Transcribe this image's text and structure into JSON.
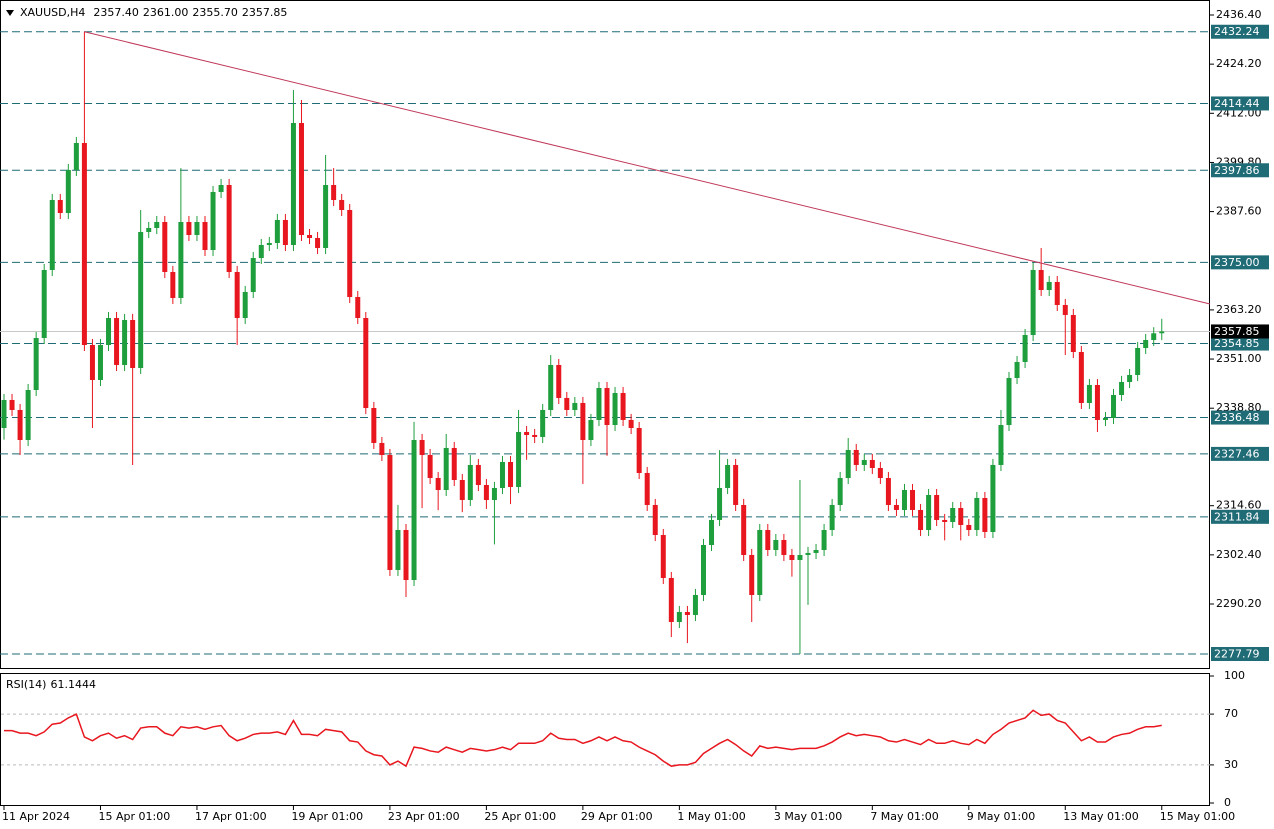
{
  "chart_data": [
    {
      "type": "candlestick",
      "title": "XAUUSD,H4",
      "header": [
        {
          "value": 2357.4,
          "label": "2357.40"
        },
        {
          "value": 2361.0,
          "label": "2361.00"
        },
        {
          "value": 2355.7,
          "label": "2355.70"
        },
        {
          "value": 2357.85,
          "label": "2357.85"
        }
      ],
      "x_labels": [
        "11 Apr 2024",
        "15 Apr 01:00",
        "17 Apr 01:00",
        "19 Apr 01:00",
        "23 Apr 01:00",
        "25 Apr 01:00",
        "29 Apr 01:00",
        "1 May 01:00",
        "3 May 01:00",
        "7 May 01:00",
        "9 May 01:00",
        "13 May 01:00",
        "15 May 01:00"
      ],
      "open": [
        2333.89,
        2340.84,
        2338.36,
        2330.91,
        2343.32,
        2356.23,
        2373.11,
        2390.48,
        2387.25,
        2397.93,
        2404.63,
        2354.49,
        2345.8,
        2354.49,
        2361.19,
        2349.53,
        2360.7,
        2348.78,
        2382.54,
        2383.53,
        2385.02,
        2372.61,
        2366.16,
        2385.02,
        2381.79,
        2385.02,
        2378.07,
        2392.47,
        2394.2,
        2372.61,
        2361.19,
        2367.65,
        2376.08,
        2379.31,
        2379.81,
        2385.52,
        2379.31,
        2409.59,
        2381.79,
        2381.05,
        2378.57,
        2394.2,
        2390.48,
        2388.0,
        2366.4,
        2361.19,
        2338.85,
        2330.17,
        2327.19,
        2298.65,
        2308.57,
        2296.16,
        2330.91,
        2327.19,
        2321.48,
        2318.5,
        2328.93,
        2320.98,
        2316.02,
        2324.71,
        2319.74,
        2316.02,
        2319.0,
        2325.45,
        2319.25,
        2332.9,
        2332.15,
        2331.66,
        2338.36,
        2349.53,
        2341.34,
        2338.36,
        2340.1,
        2330.91,
        2335.88,
        2343.82,
        2334.63,
        2342.58,
        2335.88,
        2333.89,
        2322.72,
        2314.78,
        2307.33,
        2296.66,
        2285.74,
        2288.22,
        2287.48,
        2292.44,
        2304.85,
        2311.06,
        2319.0,
        2324.71,
        2314.78,
        2302.37,
        2292.44,
        2308.57,
        2303.61,
        2306.09,
        2302.37,
        2301.13,
        2302.37,
        2302.87,
        2303.61,
        2308.57,
        2314.78,
        2321.48,
        2328.43,
        2324.71,
        2325.95,
        2323.96,
        2321.48,
        2314.78,
        2313.54,
        2318.5,
        2313.54,
        2308.57,
        2317.26,
        2311.06,
        2310.56,
        2314.03,
        2309.81,
        2308.57,
        2316.52,
        2308.08,
        2324.71,
        2334.63,
        2346.3,
        2350.27,
        2356.97,
        2373.11,
        2368.14,
        2370.13,
        2364.42,
        2361.94,
        2352.75,
        2340.1,
        2344.56,
        2335.88,
        2336.37,
        2342.08,
        2345.31,
        2347.04,
        2353.75,
        2355.73,
        2357.4
      ],
      "high": [
        2342.34,
        2342.34,
        2339.86,
        2344.82,
        2357.73,
        2374.61,
        2391.98,
        2391.98,
        2399.43,
        2406.13,
        2432.24,
        2355.99,
        2355.99,
        2362.69,
        2362.69,
        2362.2,
        2362.2,
        2388.0,
        2385.03,
        2386.52,
        2386.52,
        2374.11,
        2398.4,
        2386.52,
        2386.52,
        2386.52,
        2393.97,
        2395.7,
        2395.7,
        2374.11,
        2369.15,
        2377.58,
        2380.81,
        2381.31,
        2387.02,
        2387.02,
        2417.78,
        2415.3,
        2383.29,
        2382.55,
        2401.65,
        2398.4,
        2391.98,
        2389.5,
        2367.9,
        2362.69,
        2340.35,
        2331.67,
        2328.69,
        2314.78,
        2310.07,
        2335.4,
        2332.41,
        2328.69,
        2322.98,
        2332.4,
        2330.43,
        2322.48,
        2327.2,
        2326.21,
        2321.24,
        2320.5,
        2326.95,
        2326.95,
        2338.36,
        2334.4,
        2333.65,
        2339.86,
        2352.0,
        2351.03,
        2342.84,
        2341.6,
        2341.6,
        2337.38,
        2345.32,
        2345.32,
        2344.08,
        2344.08,
        2337.38,
        2335.39,
        2324.22,
        2316.28,
        2308.83,
        2298.16,
        2289.72,
        2289.72,
        2293.94,
        2306.35,
        2312.56,
        2328.4,
        2326.21,
        2326.21,
        2316.28,
        2303.87,
        2310.07,
        2310.07,
        2307.59,
        2307.59,
        2303.87,
        2320.98,
        2304.37,
        2305.11,
        2310.07,
        2316.28,
        2322.98,
        2331.4,
        2329.93,
        2327.45,
        2327.45,
        2325.46,
        2322.98,
        2316.28,
        2320.0,
        2320.0,
        2315.04,
        2318.76,
        2318.76,
        2312.56,
        2315.53,
        2315.53,
        2311.31,
        2318.02,
        2318.02,
        2326.21,
        2338.36,
        2347.8,
        2351.77,
        2358.47,
        2375.0,
        2378.57,
        2371.63,
        2371.63,
        2365.92,
        2363.44,
        2354.25,
        2346.06,
        2346.06,
        2337.87,
        2343.58,
        2346.81,
        2348.54,
        2355.25,
        2357.23,
        2358.9,
        2361.0
      ],
      "low": [
        2331.0,
        2336.86,
        2327.19,
        2329.41,
        2341.82,
        2354.73,
        2371.61,
        2385.75,
        2385.75,
        2396.43,
        2352.99,
        2333.89,
        2344.3,
        2352.99,
        2348.03,
        2348.03,
        2324.71,
        2347.28,
        2381.04,
        2382.03,
        2371.11,
        2364.66,
        2364.66,
        2380.29,
        2380.29,
        2376.57,
        2376.57,
        2390.97,
        2371.11,
        2354.49,
        2359.69,
        2366.15,
        2374.58,
        2377.81,
        2378.31,
        2377.81,
        2377.81,
        2380.29,
        2379.55,
        2377.07,
        2377.07,
        2388.98,
        2386.5,
        2364.9,
        2359.69,
        2337.35,
        2328.67,
        2325.69,
        2297.15,
        2297.15,
        2291.94,
        2294.66,
        2314.0,
        2319.98,
        2313.5,
        2317.0,
        2319.48,
        2313.0,
        2314.52,
        2318.24,
        2313.8,
        2305.0,
        2317.5,
        2315.0,
        2317.75,
        2326.0,
        2330.16,
        2330.16,
        2336.86,
        2339.84,
        2336.86,
        2336.86,
        2320.0,
        2329.41,
        2334.38,
        2327.0,
        2333.13,
        2334.38,
        2332.39,
        2321.22,
        2313.28,
        2305.83,
        2295.16,
        2282.0,
        2284.24,
        2280.5,
        2285.98,
        2290.94,
        2303.35,
        2309.56,
        2317.5,
        2313.28,
        2300.87,
        2285.74,
        2290.94,
        2302.11,
        2302.11,
        2300.87,
        2297.0,
        2277.79,
        2290.0,
        2301.37,
        2302.11,
        2307.07,
        2313.28,
        2319.98,
        2323.21,
        2323.21,
        2322.46,
        2319.98,
        2313.28,
        2312.04,
        2312.04,
        2312.04,
        2307.07,
        2307.07,
        2309.56,
        2306.0,
        2309.06,
        2306.0,
        2307.07,
        2307.07,
        2306.58,
        2306.58,
        2323.21,
        2333.13,
        2344.8,
        2348.77,
        2355.47,
        2366.64,
        2366.64,
        2362.92,
        2352.0,
        2351.25,
        2338.6,
        2338.6,
        2332.9,
        2334.38,
        2334.87,
        2340.58,
        2343.81,
        2345.54,
        2352.25,
        2354.23,
        2355.7
      ],
      "close": [
        2340.84,
        2338.36,
        2330.91,
        2343.32,
        2356.23,
        2373.11,
        2390.48,
        2387.25,
        2397.93,
        2404.63,
        2354.49,
        2345.8,
        2354.49,
        2361.19,
        2349.53,
        2360.7,
        2348.78,
        2382.54,
        2383.53,
        2385.02,
        2372.61,
        2366.16,
        2385.02,
        2381.79,
        2385.02,
        2378.07,
        2392.47,
        2394.2,
        2372.61,
        2361.19,
        2367.65,
        2376.08,
        2379.31,
        2379.81,
        2385.52,
        2379.31,
        2409.59,
        2381.79,
        2381.05,
        2378.57,
        2394.2,
        2390.48,
        2388.0,
        2366.4,
        2361.19,
        2338.85,
        2330.17,
        2327.19,
        2298.65,
        2308.57,
        2296.16,
        2330.91,
        2327.19,
        2321.48,
        2318.5,
        2328.93,
        2320.98,
        2316.02,
        2324.71,
        2319.74,
        2316.02,
        2319.0,
        2325.45,
        2319.25,
        2332.9,
        2332.15,
        2331.66,
        2338.36,
        2349.53,
        2341.34,
        2338.36,
        2340.1,
        2330.91,
        2335.88,
        2343.82,
        2334.63,
        2342.58,
        2335.88,
        2333.89,
        2322.72,
        2314.78,
        2307.33,
        2296.66,
        2285.74,
        2288.22,
        2287.48,
        2292.44,
        2304.85,
        2311.06,
        2319.0,
        2324.71,
        2314.78,
        2302.37,
        2292.44,
        2308.57,
        2303.61,
        2306.09,
        2302.37,
        2301.13,
        2302.37,
        2302.87,
        2303.61,
        2308.57,
        2314.78,
        2321.48,
        2328.43,
        2324.71,
        2325.95,
        2323.96,
        2321.48,
        2314.78,
        2313.54,
        2318.5,
        2313.54,
        2308.57,
        2317.26,
        2311.06,
        2310.56,
        2314.03,
        2309.81,
        2308.57,
        2316.52,
        2308.08,
        2324.71,
        2334.63,
        2346.3,
        2350.27,
        2356.97,
        2373.11,
        2368.14,
        2370.13,
        2364.42,
        2361.94,
        2352.75,
        2340.1,
        2344.56,
        2335.88,
        2336.37,
        2342.08,
        2345.31,
        2347.04,
        2353.75,
        2355.73,
        2357.4,
        2357.85
      ],
      "ylim": [
        2274.07,
        2440.12
      ],
      "yticks": [
        {
          "value": 2436.4,
          "label": "2436.40"
        },
        {
          "value": 2424.2,
          "label": "2424.20"
        },
        {
          "value": 2412,
          "label": "2412.00"
        },
        {
          "value": 2399.8,
          "label": "2399.80"
        },
        {
          "value": 2387.6,
          "label": "2387.60"
        },
        {
          "value": 2363.2,
          "label": "2363.20"
        },
        {
          "value": 2351,
          "label": "2351.00"
        },
        {
          "value": 2338.8,
          "label": "2338.80"
        },
        {
          "value": 2314.6,
          "label": "2314.60"
        },
        {
          "value": 2302.4,
          "label": "2302.40"
        },
        {
          "value": 2290.2,
          "label": "2290.20"
        }
      ],
      "levels": [
        {
          "value": 2432.24,
          "label": "2432.24"
        },
        {
          "value": 2414.44,
          "label": "2414.44"
        },
        {
          "value": 2397.86,
          "label": "2397.86"
        },
        {
          "value": 2375,
          "label": "2375.00"
        },
        {
          "value": 2354.85,
          "label": "2354.85"
        },
        {
          "value": 2336.48,
          "label": "2336.48"
        },
        {
          "value": 2327.46,
          "label": "2327.46"
        },
        {
          "value": 2311.84,
          "label": "2311.84"
        },
        {
          "value": 2277.79,
          "label": "2277.79"
        }
      ],
      "current": {
        "value": 2357.85,
        "label": "2357.85"
      },
      "trendline": {
        "x": [
          10,
          150
        ],
        "y": [
          2432.24,
          2364.67
        ]
      },
      "up_color": "#1e9e3c",
      "down_color": "#e8161e",
      "level_color": "#1f6b76",
      "trend_color": "#c0395a",
      "current_color": "#c8c8c8"
    },
    {
      "type": "line",
      "title": "RSI(14)",
      "values": [
        57,
        57,
        55,
        55,
        53,
        56,
        62,
        63,
        67,
        70,
        52,
        49,
        53,
        55,
        51,
        53,
        50,
        59,
        60,
        60,
        55,
        53,
        60,
        59,
        60,
        58,
        60,
        61,
        53,
        49,
        51,
        54,
        55,
        55,
        56,
        54,
        65,
        54,
        54,
        53,
        58,
        57,
        56,
        49,
        48,
        41,
        38,
        37,
        30,
        33,
        29,
        44,
        43,
        41,
        40,
        44,
        42,
        40,
        43,
        42,
        41,
        42,
        44,
        42,
        47,
        47,
        47,
        49,
        55,
        51,
        50,
        50,
        47,
        49,
        52,
        49,
        52,
        49,
        48,
        44,
        41,
        38,
        33,
        29,
        30,
        30,
        32,
        39,
        43,
        47,
        50,
        46,
        41,
        37,
        45,
        43,
        44,
        43,
        42,
        43,
        43,
        43,
        45,
        48,
        52,
        55,
        53,
        54,
        53,
        52,
        49,
        48,
        50,
        48,
        46,
        50,
        47,
        47,
        49,
        47,
        46,
        50,
        47,
        54,
        58,
        63,
        65,
        67,
        73,
        69,
        70,
        65,
        63,
        56,
        49,
        52,
        48,
        48,
        52,
        54,
        55,
        58,
        60,
        60,
        61.1444
      ],
      "ylim": [
        0,
        100
      ],
      "yticks": [
        100,
        70,
        30,
        0
      ],
      "levels": [
        70,
        30
      ],
      "color": "#e8161e"
    }
  ]
}
